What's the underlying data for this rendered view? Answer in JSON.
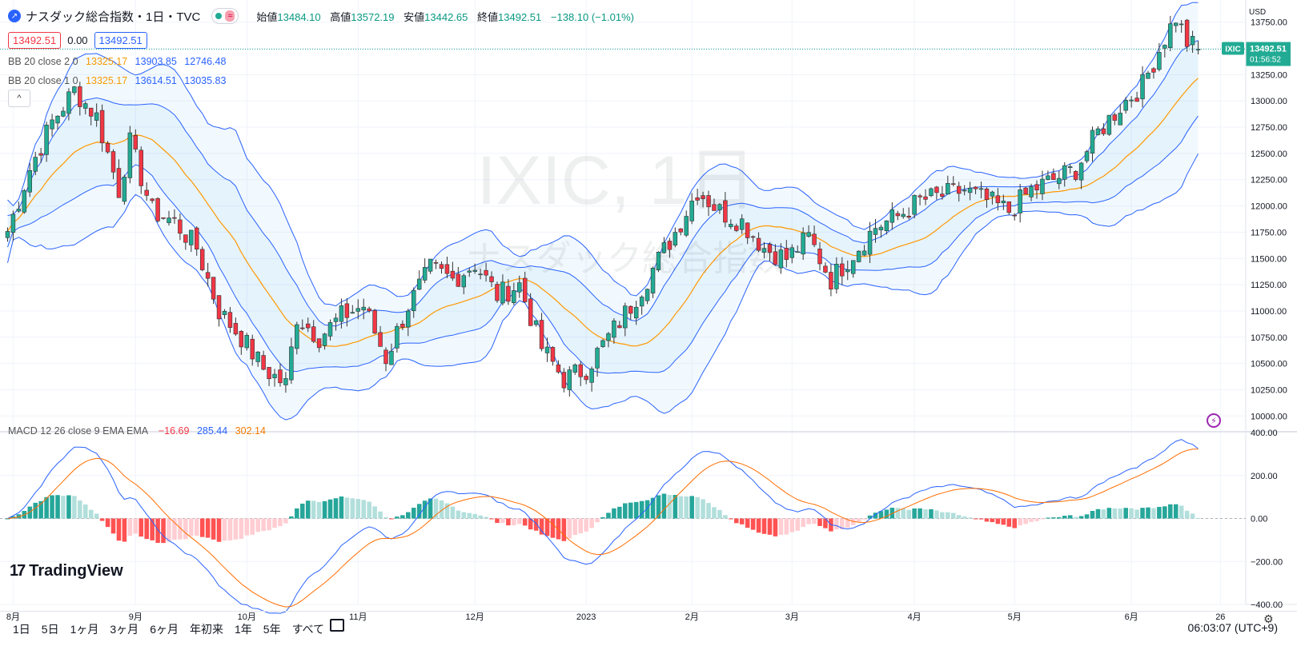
{
  "header": {
    "title": "ナスダック総合指数・1日・TVC",
    "ohlc": [
      {
        "key": "始値",
        "value": "13484.10"
      },
      {
        "key": "高値",
        "value": "13572.19"
      },
      {
        "key": "安値",
        "value": "13442.65"
      },
      {
        "key": "終値",
        "value": "13492.51"
      }
    ],
    "change": "−138.10 (−1.01%)",
    "pill_wave": "≈",
    "box_sell": "13492.51",
    "box_spread": "0.00",
    "box_buy": "13492.51",
    "collapse_icon": "^"
  },
  "indicators": {
    "bb2": {
      "label": "BB 20 close 2 0",
      "mid": "13325.17",
      "upper": "13903.85",
      "lower": "12746.48"
    },
    "bb1": {
      "label": "BB 20 close 1 0",
      "mid": "13325.17",
      "upper": "13614.51",
      "lower": "13035.83"
    },
    "macd": {
      "label": "MACD 12 26 close 9 EMA EMA",
      "hist": "−16.69",
      "macd": "285.44",
      "signal": "302.14"
    }
  },
  "watermark": {
    "line1": "IXIC, 1日",
    "line2": "ナスダック総合指数"
  },
  "price_scale": {
    "currency": "USD",
    "labels": [
      "13750.00",
      "13500.00",
      "13250.00",
      "13000.00",
      "12750.00",
      "12500.00",
      "12250.00",
      "12000.00",
      "11750.00",
      "11500.00",
      "11250.00",
      "11000.00",
      "10750.00",
      "10500.00",
      "10250.00",
      "10000.00"
    ],
    "symbol_tag": "IXIC",
    "last_price": "13492.51",
    "countdown": "01:56:52"
  },
  "macd_scale": {
    "labels": [
      "400.00",
      "200.00",
      "0.00",
      "−200.00",
      "−400.00"
    ]
  },
  "time_axis": {
    "labels": [
      {
        "text": "8月",
        "idx": 1
      },
      {
        "text": "9月",
        "idx": 23
      },
      {
        "text": "10月",
        "idx": 43
      },
      {
        "text": "11月",
        "idx": 63
      },
      {
        "text": "12月",
        "idx": 84
      },
      {
        "text": "2023",
        "idx": 104
      },
      {
        "text": "2月",
        "idx": 123
      },
      {
        "text": "3月",
        "idx": 141
      },
      {
        "text": "4月",
        "idx": 163
      },
      {
        "text": "5月",
        "idx": 181
      },
      {
        "text": "6月",
        "idx": 202
      },
      {
        "text": "26",
        "idx": 218
      }
    ]
  },
  "colors": {
    "up": "#22ab94",
    "down": "#f23645",
    "upper_band": "#2962ff",
    "basis": "#ff9800",
    "macd_line": "#2962ff",
    "signal_line": "#ff6d00",
    "hist_up_strong": "#26a69a",
    "hist_up_weak": "#b2dfdb",
    "hist_down_strong": "#ff5252",
    "hist_down_weak": "#ffcdd2",
    "last_price_tag": "#22ab94"
  },
  "chart_data": {
    "type": "candlestick",
    "anchors": [
      [
        0,
        11760
      ],
      [
        4,
        12350
      ],
      [
        8,
        12800
      ],
      [
        12,
        13100
      ],
      [
        16,
        12850
      ],
      [
        20,
        12150
      ],
      [
        22,
        12600
      ],
      [
        26,
        11950
      ],
      [
        30,
        11850
      ],
      [
        34,
        11600
      ],
      [
        38,
        11000
      ],
      [
        42,
        10750
      ],
      [
        46,
        10450
      ],
      [
        50,
        10300
      ],
      [
        52,
        10950
      ],
      [
        56,
        10750
      ],
      [
        60,
        10950
      ],
      [
        64,
        11050
      ],
      [
        68,
        10550
      ],
      [
        72,
        11050
      ],
      [
        76,
        11400
      ],
      [
        80,
        11300
      ],
      [
        84,
        11450
      ],
      [
        88,
        11150
      ],
      [
        92,
        11250
      ],
      [
        96,
        10650
      ],
      [
        100,
        10350
      ],
      [
        104,
        10450
      ],
      [
        108,
        10750
      ],
      [
        112,
        11050
      ],
      [
        116,
        11400
      ],
      [
        120,
        11750
      ],
      [
        124,
        12150
      ],
      [
        128,
        11950
      ],
      [
        132,
        11850
      ],
      [
        136,
        11600
      ],
      [
        140,
        11500
      ],
      [
        144,
        11700
      ],
      [
        148,
        11300
      ],
      [
        152,
        11550
      ],
      [
        156,
        11800
      ],
      [
        160,
        11900
      ],
      [
        164,
        12050
      ],
      [
        168,
        12100
      ],
      [
        172,
        12150
      ],
      [
        176,
        12050
      ],
      [
        180,
        11950
      ],
      [
        184,
        12150
      ],
      [
        188,
        12250
      ],
      [
        192,
        12350
      ],
      [
        196,
        12700
      ],
      [
        200,
        12950
      ],
      [
        204,
        13150
      ],
      [
        208,
        13600
      ],
      [
        210,
        13800
      ],
      [
        212,
        13560
      ],
      [
        214,
        13492
      ]
    ],
    "candle_count": 215,
    "y_range": [
      9850,
      13900
    ],
    "bollinger": {
      "period": 20,
      "mult_outer": 2,
      "mult_inner": 1
    },
    "macd": {
      "fast": 12,
      "slow": 26,
      "signal": 9,
      "y_range": [
        -400,
        400
      ]
    },
    "last": {
      "open": 13484.1,
      "high": 13572.19,
      "low": 13442.65,
      "close": 13492.51
    }
  },
  "bottom_bar": {
    "timeframes": [
      "1日",
      "5日",
      "1ヶ月",
      "3ヶ月",
      "6ヶ月",
      "年初来",
      "1年",
      "5年",
      "すべて"
    ],
    "clock": "06:03:07 (UTC+9)"
  },
  "branding": {
    "logo_text": "TradingView",
    "logo_mark": "17"
  }
}
